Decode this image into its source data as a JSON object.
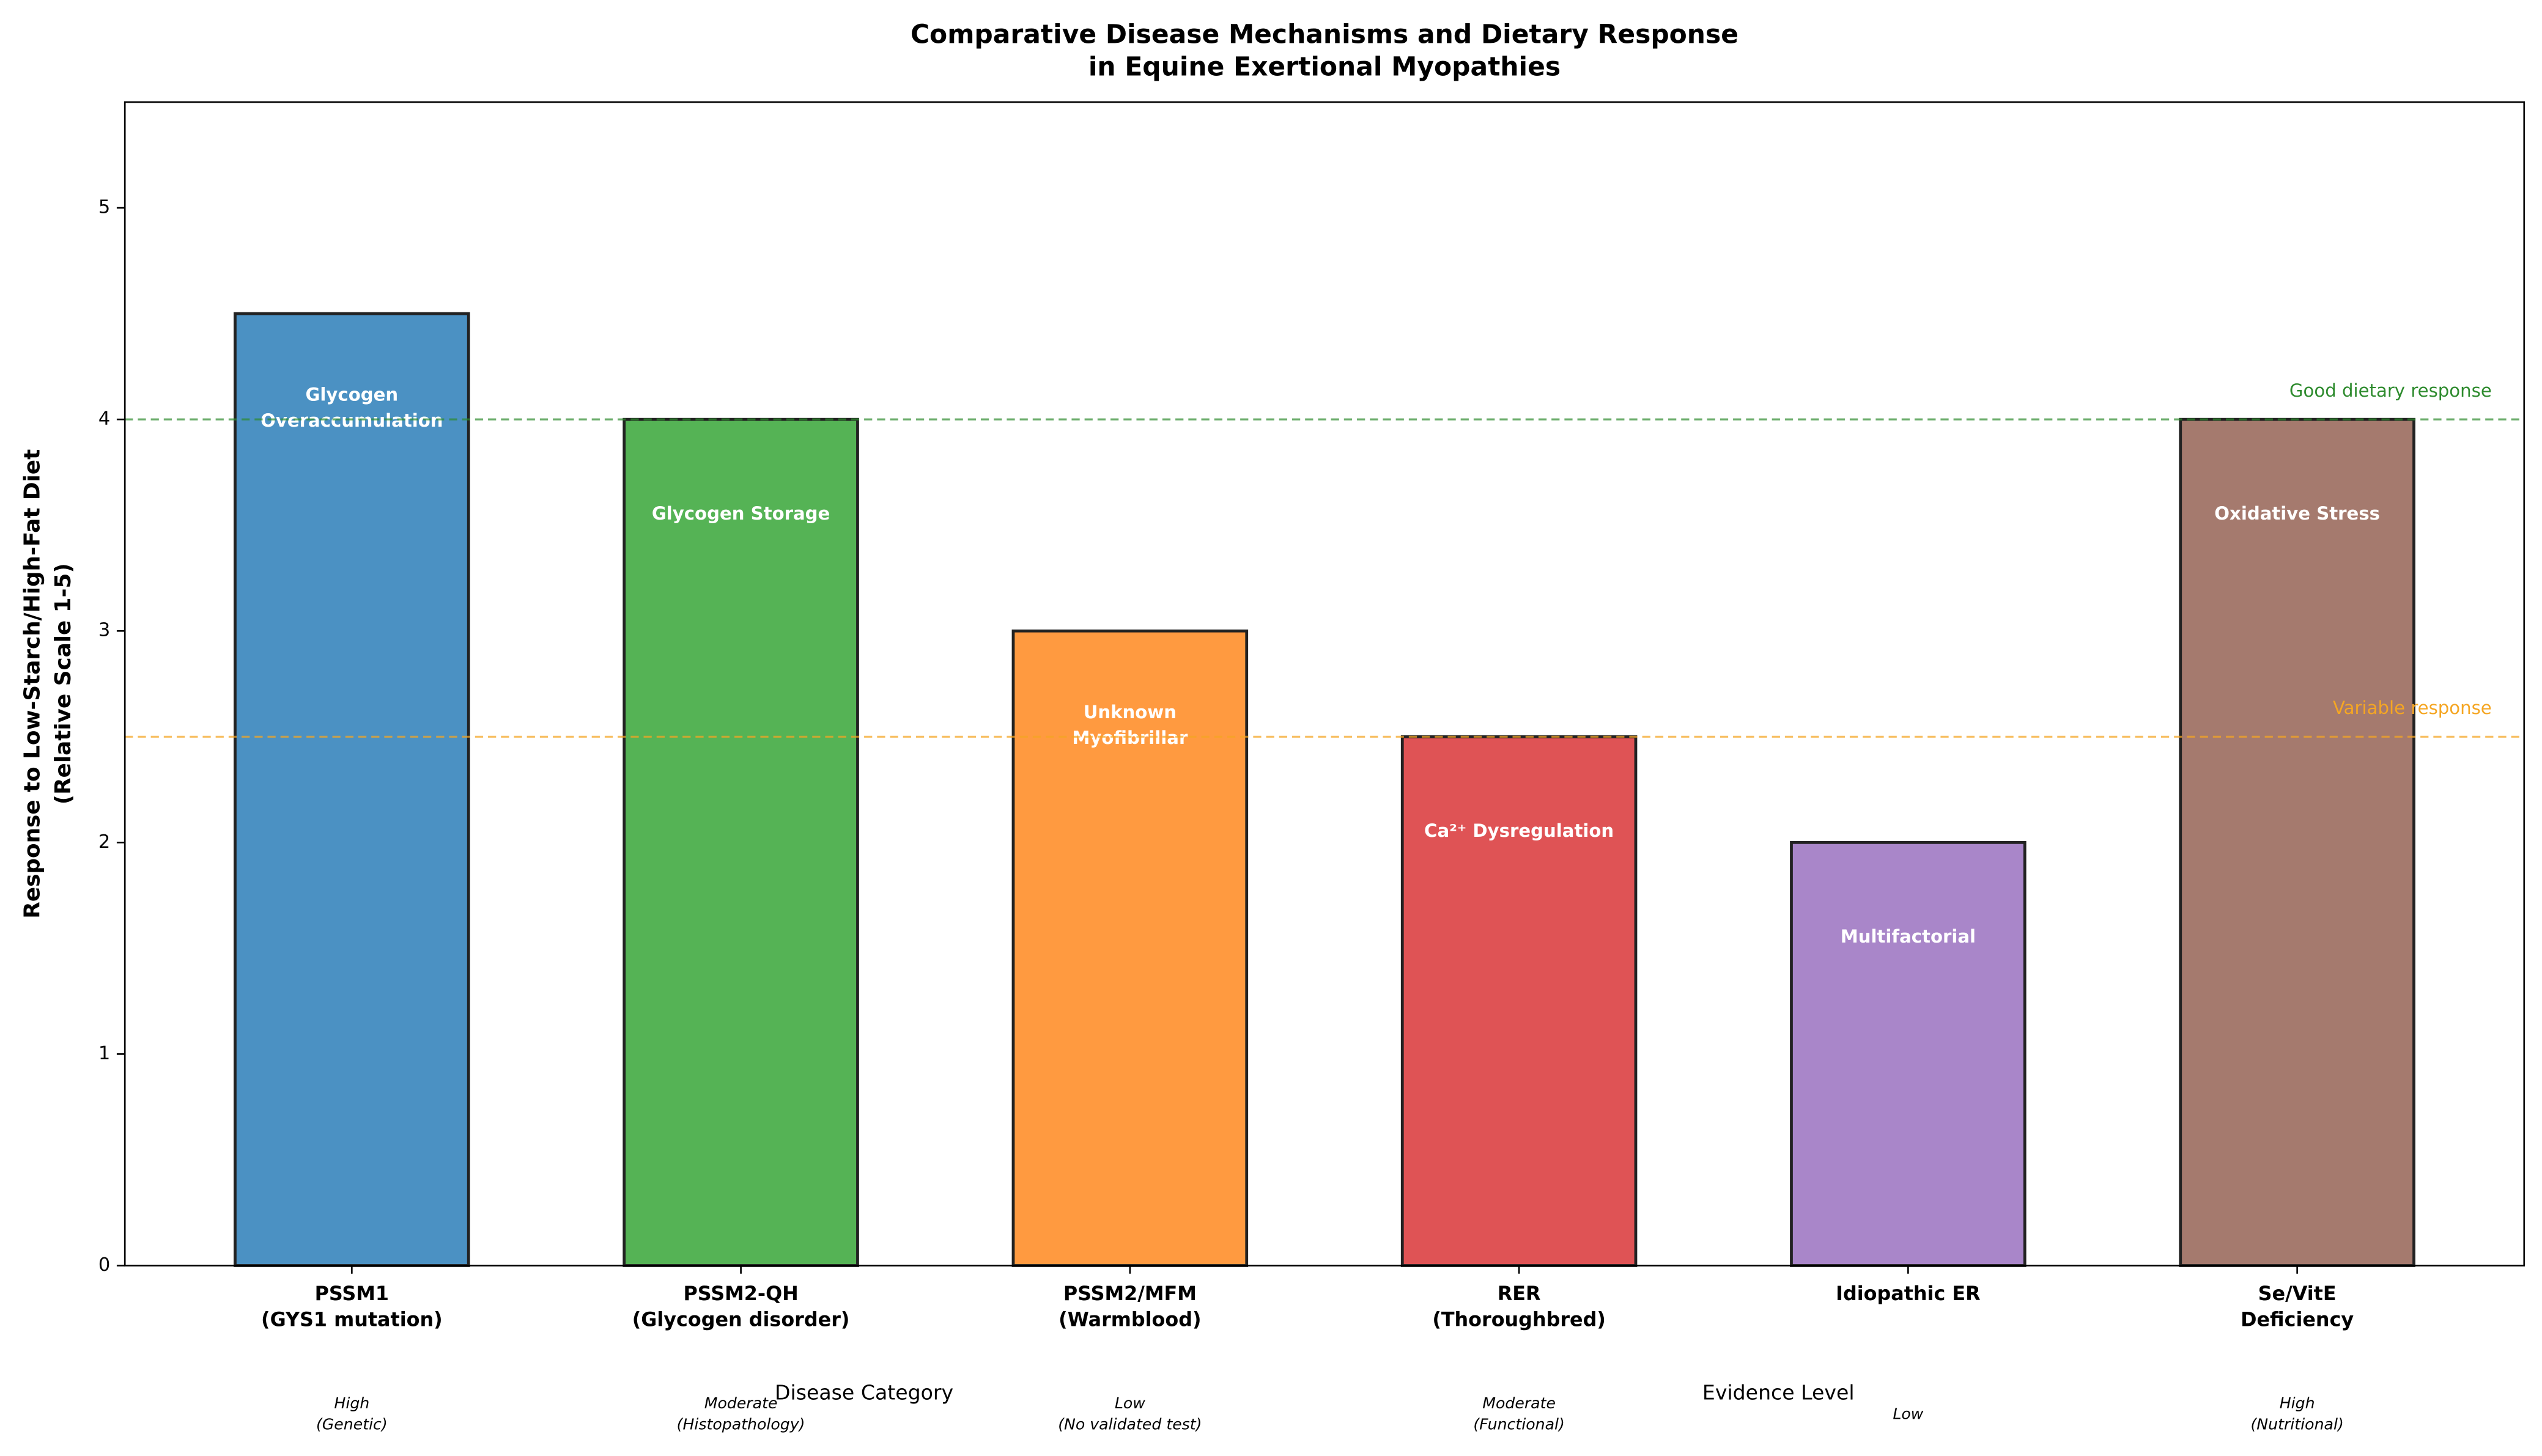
{
  "chart_data": {
    "type": "bar",
    "title": "Comparative Disease Mechanisms and Dietary Response\nin Equine Exertional Myopathies",
    "x_label": "Disease Category",
    "x_label_secondary": "Evidence Level",
    "y_label": "Response to Low-Starch/High-Fat Diet\n(Relative Scale 1-5)",
    "categories": [
      "PSSM1\n(GYS1 mutation)",
      "PSSM2-QH\n(Glycogen disorder)",
      "PSSM2/MFM\n(Warmblood)",
      "RER\n(Thoroughbred)",
      "Idiopathic ER",
      "Se/VitE\nDeficiency"
    ],
    "values": [
      4.5,
      4,
      3,
      2.5,
      2,
      4
    ],
    "colors": [
      "#4b91c3",
      "#55b355",
      "#ff9a40",
      "#df5355",
      "#a986c9",
      "#a57a6e"
    ],
    "mechanisms": [
      "Glycogen\nOveraccumulation",
      "Glycogen Storage",
      "Unknown\nMyofibrillar",
      "Ca²⁺ Dysregulation",
      "Multifactorial",
      "Oxidative Stress"
    ],
    "evidence": [
      "High\n(Genetic)",
      "Moderate\n(Histopathology)",
      "Low\n(No validated test)",
      "Moderate\n(Functional)",
      "Low",
      "High\n(Nutritional)"
    ],
    "reference_lines": [
      {
        "value": 4,
        "label": "Good dietary response",
        "color": "#2e8b2e"
      },
      {
        "value": 2.5,
        "label": "Variable response",
        "color": "#f5a623"
      }
    ],
    "ylim": [
      0,
      5.5
    ],
    "yticks": [
      0,
      1,
      2,
      3,
      4,
      5
    ]
  }
}
